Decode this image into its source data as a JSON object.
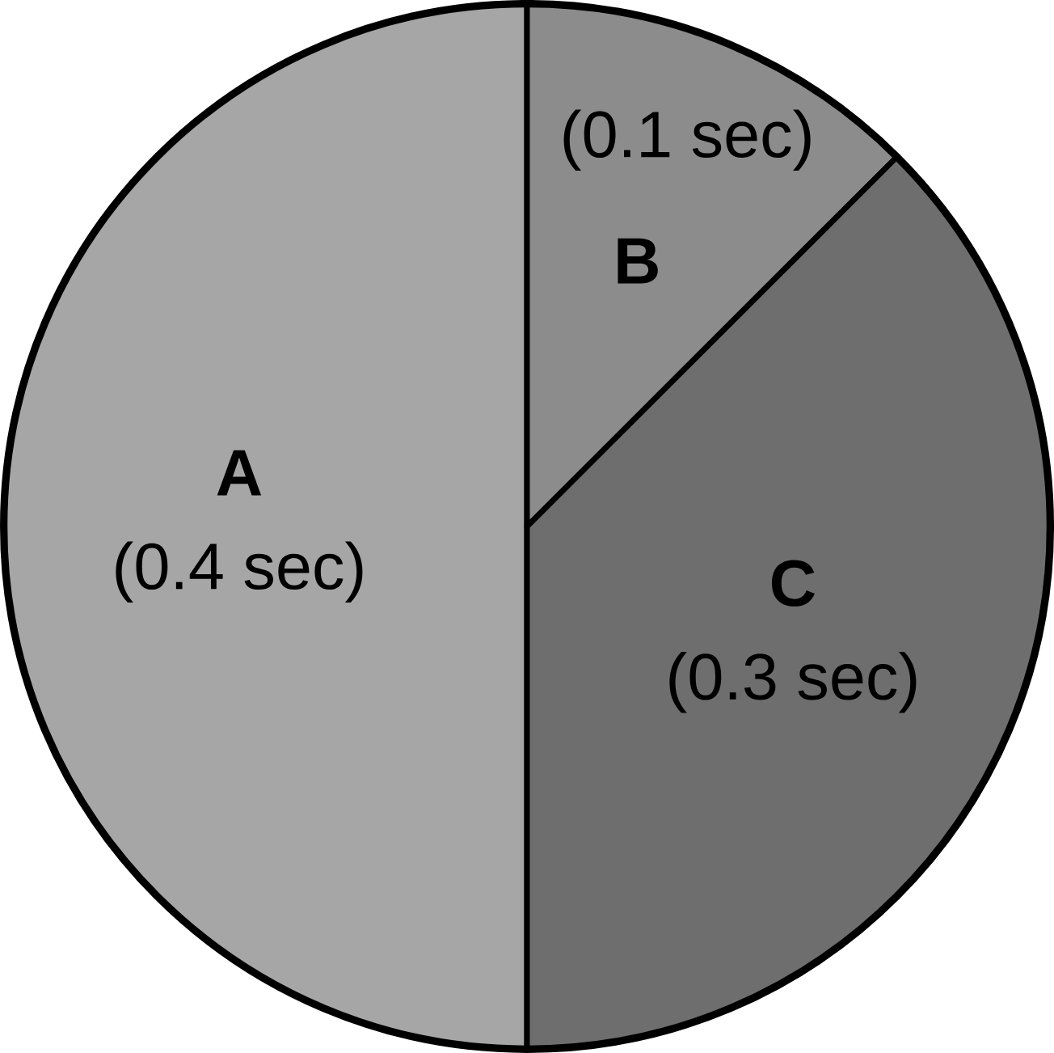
{
  "chart_data": {
    "type": "pie",
    "categories": [
      "A",
      "B",
      "C"
    ],
    "values": [
      0.4,
      0.1,
      0.3
    ],
    "value_labels": [
      "(0.4 sec)",
      "(0.1 sec)",
      "(0.3 sec)"
    ],
    "colors": [
      "#a6a6a6",
      "#8c8c8c",
      "#6e6e6e"
    ]
  }
}
